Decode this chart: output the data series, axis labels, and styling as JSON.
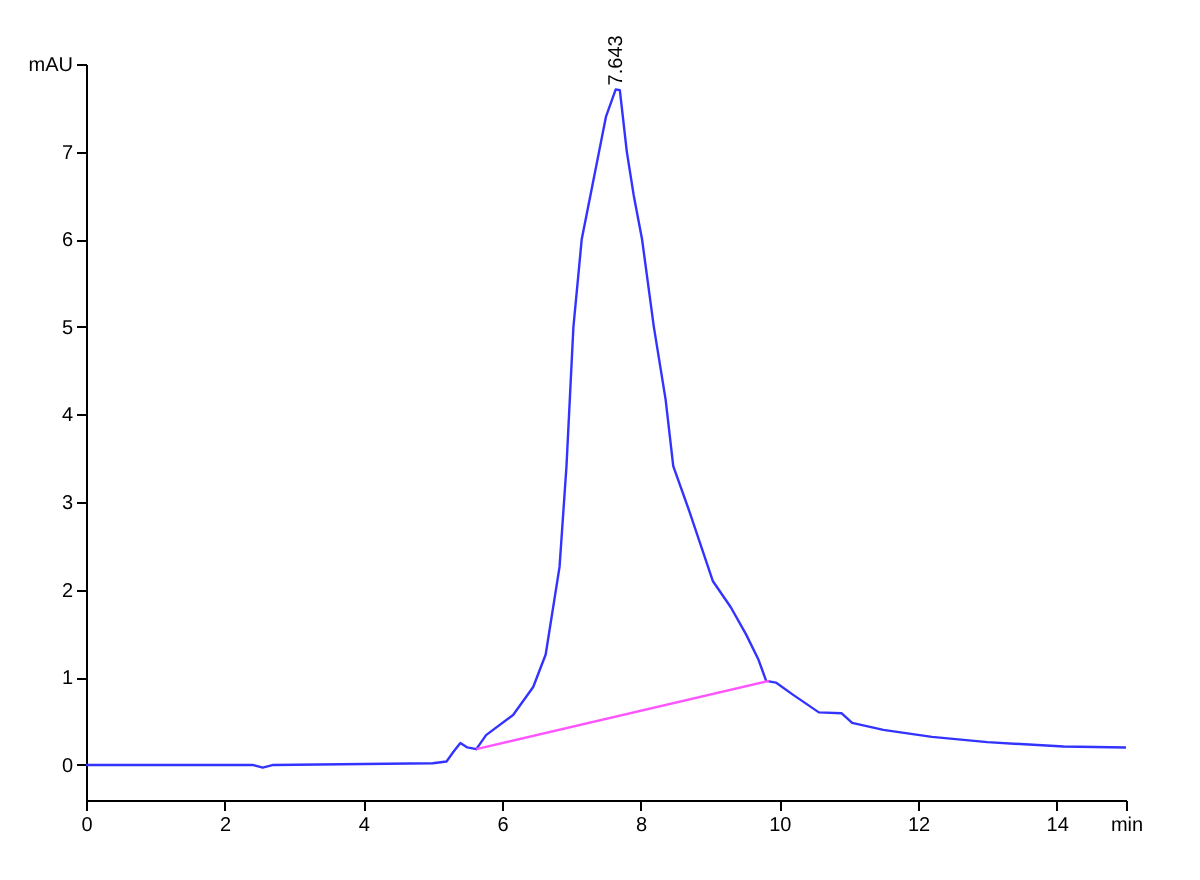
{
  "chart_data": {
    "type": "line",
    "xlim": [
      0,
      15
    ],
    "ylim": [
      -0.4,
      8
    ],
    "xticks": [
      0,
      2,
      4,
      6,
      8,
      10,
      12,
      14,
      {
        "value": 15,
        "label": "min"
      }
    ],
    "yticks": [
      0,
      1,
      2,
      3,
      4,
      5,
      6,
      7,
      {
        "value": 8,
        "label": "mAU"
      }
    ],
    "grid": false,
    "series": [
      {
        "color": "#3333ff",
        "x": [
          0,
          2.4,
          2.55,
          2.7,
          5.0,
          5.2,
          5.3,
          5.4,
          5.5,
          5.63,
          5.77,
          6.16,
          6.45,
          6.63,
          6.83,
          6.93,
          7.03,
          7.15,
          7.3,
          7.4,
          7.5,
          7.64,
          7.7,
          7.8,
          7.9,
          8.02,
          8.19,
          8.36,
          8.47,
          8.7,
          9.04,
          9.3,
          9.52,
          9.7,
          9.81,
          9.95,
          10.2,
          10.57,
          10.9,
          11.05,
          11.5,
          12.2,
          13,
          14.1,
          15
        ],
        "values": [
          0,
          0,
          -0.03,
          0,
          0.02,
          0.04,
          0.15,
          0.25,
          0.2,
          0.18,
          0.34,
          0.57,
          0.89,
          1.26,
          2.26,
          3.41,
          5.0,
          6.0,
          6.6,
          7.0,
          7.4,
          7.71,
          7.7,
          7.0,
          6.5,
          6.0,
          5.0,
          4.17,
          3.41,
          2.9,
          2.1,
          1.8,
          1.49,
          1.2,
          0.96,
          0.94,
          0.8,
          0.6,
          0.59,
          0.48,
          0.4,
          0.32,
          0.26,
          0.21,
          0.2
        ]
      },
      {
        "color": "#ff55ff",
        "x": [
          5.63,
          9.85
        ],
        "values": [
          0.18,
          0.96
        ]
      }
    ],
    "annotations": [
      {
        "text": "7.643",
        "x": 7.643,
        "y": 7.71
      }
    ]
  }
}
